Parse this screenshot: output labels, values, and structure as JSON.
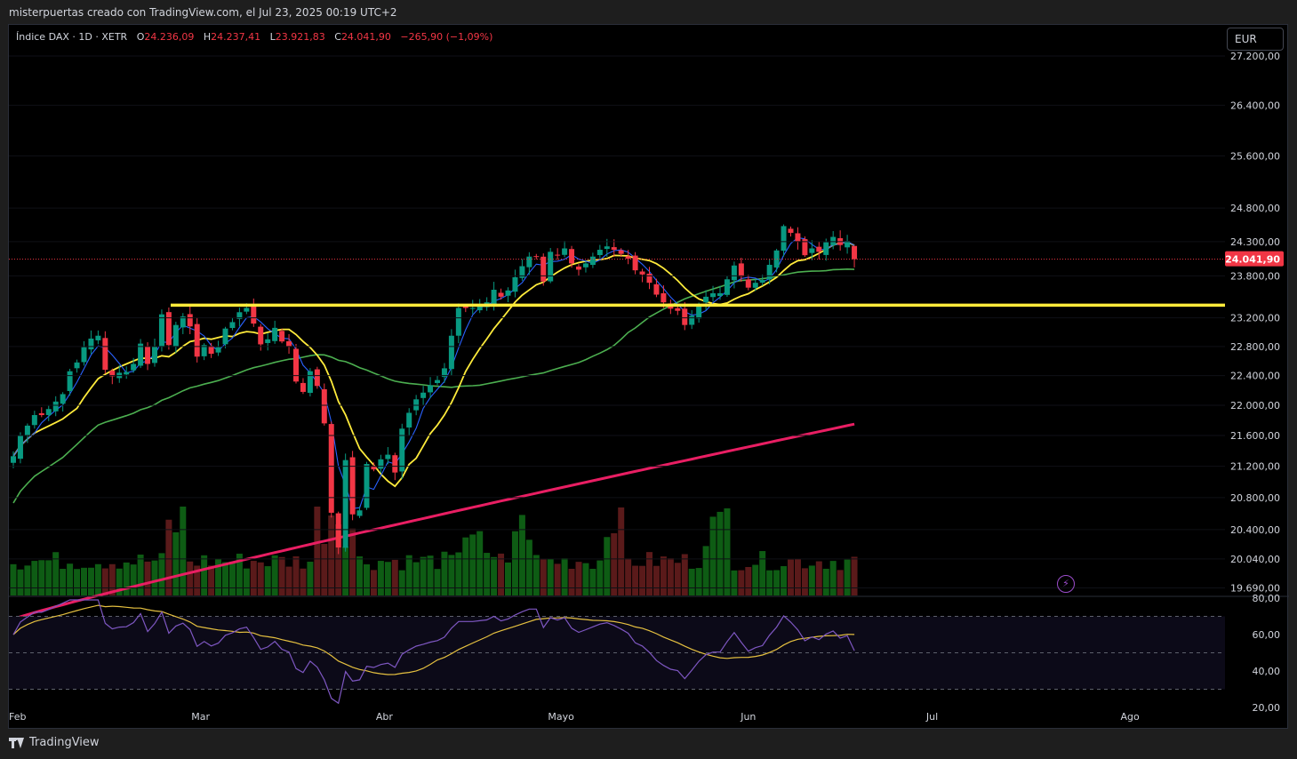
{
  "caption": "misterpuertas creado con TradingView.com, el Jul 23, 2025 00:19 UTC+2",
  "legend": {
    "symbol": "Índice DAX · 1D · XETR",
    "o_label": "O",
    "o_value": "24.236,09",
    "h_label": "H",
    "h_value": "24.237,41",
    "l_label": "L",
    "l_value": "23.921,83",
    "c_label": "C",
    "c_value": "24.041,90",
    "change": "−265,90 (−1,09%)"
  },
  "currency": "EUR",
  "brand": "TradingView",
  "colors": {
    "up": "#089981",
    "down": "#f23645",
    "vol_up": "#0e5c14",
    "vol_down": "#5a1a1a",
    "ma_fast": "#2962ff",
    "ma_mid": "#ffeb3b",
    "ma_slow": "#4caf50",
    "ma_long": "#e91e63",
    "support": "#ffeb3b",
    "rsi": "#7e57c2",
    "rsi_ma": "#e5c040"
  },
  "chart_data": {
    "type": "candlestick",
    "symbol": "Índice DAX",
    "interval": "1D",
    "exchange": "XETR",
    "current_price": 24041.9,
    "current_price_label": "24.041,90",
    "price_axis": {
      "scale": "log",
      "range": [
        19600,
        27600
      ],
      "ticks": [
        {
          "value": 27200,
          "label": "27.200,00"
        },
        {
          "value": 26400,
          "label": "26.400,00"
        },
        {
          "value": 25600,
          "label": "25.600,00"
        },
        {
          "value": 24800,
          "label": "24.800,00"
        },
        {
          "value": 24300,
          "label": "24.300,00"
        },
        {
          "value": 23800,
          "label": "23.800,00"
        },
        {
          "value": 23200,
          "label": "23.200,00"
        },
        {
          "value": 22800,
          "label": "22.800,00"
        },
        {
          "value": 22400,
          "label": "22.400,00"
        },
        {
          "value": 22000,
          "label": "22.000,00"
        },
        {
          "value": 21600,
          "label": "21.600,00"
        },
        {
          "value": 21200,
          "label": "21.200,00"
        },
        {
          "value": 20800,
          "label": "20.800,00"
        },
        {
          "value": 20400,
          "label": "20.400,00"
        },
        {
          "value": 20040,
          "label": "20.040,00"
        },
        {
          "value": 19690,
          "label": "19.690,00"
        }
      ]
    },
    "time_axis": [
      "Feb",
      "Mar",
      "Abr",
      "Mayo",
      "Jun",
      "Jul",
      "Ago"
    ],
    "support_level": 23380,
    "closes": [
      21330,
      21600,
      21730,
      21870,
      21870,
      21950,
      22050,
      22150,
      22460,
      22580,
      22790,
      22910,
      22950,
      22480,
      22390,
      22440,
      22450,
      22560,
      22840,
      22560,
      22800,
      23250,
      22820,
      23100,
      23220,
      23080,
      22660,
      22820,
      22700,
      22790,
      23050,
      23140,
      23280,
      23340,
      23120,
      22830,
      22900,
      23060,
      22870,
      22800,
      22320,
      22180,
      22460,
      22260,
      21760,
      20610,
      20180,
      21280,
      20590,
      20640,
      21230,
      21160,
      21290,
      21350,
      21120,
      21690,
      21900,
      22080,
      22170,
      22270,
      22340,
      22500,
      22950,
      23340,
      23340,
      23340,
      23380,
      23420,
      23600,
      23500,
      23590,
      23780,
      23940,
      24080,
      24080,
      23720,
      24150,
      24100,
      24200,
      23980,
      23890,
      23980,
      24080,
      24180,
      24230,
      24180,
      24120,
      24050,
      23880,
      23820,
      23700,
      23530,
      23420,
      23330,
      23300,
      23100,
      23230,
      23380,
      23500,
      23550,
      23550,
      23750,
      23950,
      23790,
      23630,
      23700,
      23740,
      23960,
      24170,
      24530,
      24430,
      24300,
      24100,
      24200,
      24150,
      24290,
      24370,
      24250,
      24310,
      24041.9
    ],
    "volume_relative_note": "Volume bars beneath price with 20-period MA overlay (relative scale)",
    "moving_averages": [
      {
        "period": 5,
        "color": "blue"
      },
      {
        "period": 10,
        "color": "yellow"
      },
      {
        "period": 50,
        "color": "green"
      },
      {
        "period": 200,
        "color": "pink"
      }
    ],
    "rsi": {
      "axis_ticks": [
        {
          "value": 80,
          "label": "80,00"
        },
        {
          "value": 60,
          "label": "60,00"
        },
        {
          "value": 40,
          "label": "40,00"
        },
        {
          "value": 20,
          "label": "20,00"
        }
      ],
      "upper_band": 70,
      "mid_band": 50,
      "lower_band": 30,
      "range": [
        20,
        80
      ]
    }
  }
}
